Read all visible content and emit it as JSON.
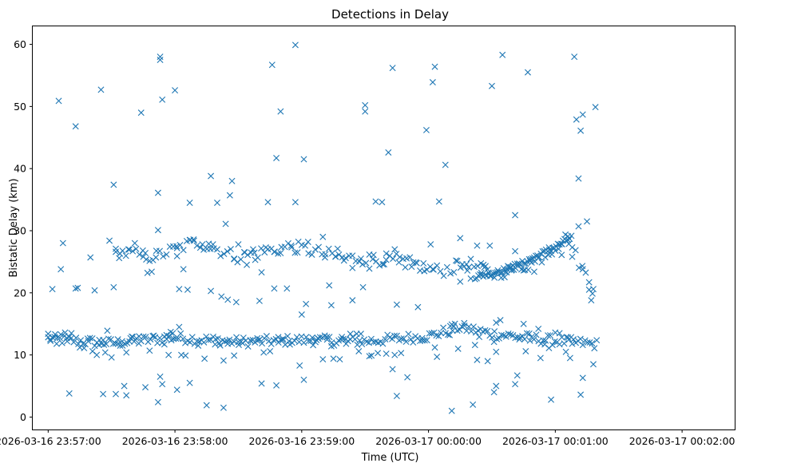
{
  "chart_data": {
    "type": "scatter",
    "title": "Detections in Delay",
    "xlabel": "Time (UTC)",
    "ylabel": "Bistatic Delay (km)",
    "x_ticks": [
      "2026-03-16 23:57:00",
      "2026-03-16 23:58:00",
      "2026-03-16 23:59:00",
      "2026-03-17 00:00:00",
      "2026-03-17 00:01:00",
      "2026-03-17 00:02:00"
    ],
    "x_tick_values": [
      60,
      120,
      180,
      240,
      300,
      360
    ],
    "y_ticks": [
      "0",
      "10",
      "20",
      "30",
      "40",
      "50",
      "60"
    ],
    "y_tick_values": [
      0,
      10,
      20,
      30,
      40,
      50,
      60
    ],
    "xlim": [
      52.7,
      384.9
    ],
    "ylim": [
      -2.0,
      62.9
    ],
    "x_unit": "seconds after 2026-03-16 23:56:00 UTC",
    "marker": "x",
    "color": "#1f77b4",
    "grid": false,
    "series_sparse": [
      [
        60,
        13.4
      ],
      [
        61,
        12.5
      ],
      [
        62,
        20.6
      ],
      [
        63,
        12.9
      ],
      [
        64,
        11.8
      ],
      [
        65,
        50.9
      ],
      [
        66,
        13.3
      ],
      [
        66,
        23.8
      ],
      [
        67,
        28.0
      ],
      [
        68,
        13.6
      ],
      [
        69,
        12.2
      ],
      [
        70,
        3.8
      ],
      [
        71,
        13.5
      ],
      [
        73,
        20.7
      ],
      [
        73,
        46.8
      ],
      [
        74,
        20.8
      ],
      [
        75,
        11.2
      ],
      [
        77,
        11.1
      ],
      [
        79,
        12.2
      ],
      [
        80,
        25.7
      ],
      [
        81,
        10.6
      ],
      [
        82,
        20.4
      ],
      [
        83,
        10.0
      ],
      [
        84,
        11.6
      ],
      [
        85,
        52.7
      ],
      [
        86,
        3.7
      ],
      [
        86,
        12.4
      ],
      [
        87,
        10.4
      ],
      [
        88,
        13.9
      ],
      [
        89,
        28.4
      ],
      [
        90,
        9.6
      ],
      [
        91,
        37.4
      ],
      [
        91,
        20.9
      ],
      [
        92,
        3.7
      ],
      [
        92,
        26.6
      ],
      [
        93,
        11.8
      ],
      [
        94,
        26.3
      ],
      [
        95,
        12.2
      ],
      [
        96,
        5.0
      ],
      [
        97,
        3.5
      ],
      [
        97,
        10.4
      ],
      [
        98,
        27.0
      ],
      [
        99,
        12.7
      ],
      [
        100,
        12.9
      ],
      [
        101,
        28.0
      ],
      [
        103,
        13.0
      ],
      [
        104,
        49.0
      ],
      [
        105,
        25.8
      ],
      [
        106,
        26.4
      ],
      [
        106,
        4.8
      ],
      [
        107,
        23.2
      ],
      [
        108,
        10.7
      ],
      [
        109,
        23.4
      ],
      [
        110,
        13.1
      ],
      [
        111,
        25.7
      ],
      [
        112,
        36.1
      ],
      [
        112,
        2.4
      ],
      [
        112,
        30.1
      ],
      [
        113,
        6.5
      ],
      [
        113,
        58.0
      ],
      [
        113,
        57.5
      ],
      [
        114,
        51.1
      ],
      [
        114,
        5.3
      ],
      [
        115,
        11.7
      ],
      [
        116,
        13.2
      ],
      [
        117,
        10.0
      ],
      [
        118,
        13.7
      ],
      [
        119,
        13.5
      ],
      [
        120,
        52.6
      ],
      [
        121,
        27.2
      ],
      [
        121,
        4.4
      ],
      [
        121,
        25.9
      ],
      [
        122,
        14.5
      ],
      [
        122,
        20.6
      ],
      [
        123,
        10.0
      ],
      [
        124,
        23.8
      ],
      [
        125,
        9.9
      ],
      [
        126,
        20.5
      ],
      [
        127,
        28.5
      ],
      [
        127,
        34.5
      ],
      [
        127,
        5.5
      ],
      [
        129,
        28.4
      ],
      [
        131,
        11.5
      ],
      [
        133,
        27.8
      ],
      [
        134,
        9.4
      ],
      [
        135,
        1.9
      ],
      [
        136,
        27.9
      ],
      [
        137,
        38.8
      ],
      [
        137,
        20.3
      ],
      [
        138,
        27.8
      ],
      [
        139,
        11.7
      ],
      [
        140,
        34.5
      ],
      [
        141,
        11.9
      ],
      [
        142,
        19.4
      ],
      [
        143,
        1.5
      ],
      [
        143,
        9.1
      ],
      [
        144,
        31.1
      ],
      [
        145,
        18.9
      ],
      [
        145,
        11.8
      ],
      [
        146,
        35.7
      ],
      [
        147,
        38.0
      ],
      [
        148,
        25.5
      ],
      [
        148,
        9.9
      ],
      [
        149,
        18.5
      ],
      [
        150,
        27.8
      ],
      [
        150,
        12.1
      ],
      [
        152,
        11.9
      ],
      [
        153,
        26.5
      ],
      [
        154,
        24.5
      ],
      [
        156,
        12.2
      ],
      [
        157,
        27.0
      ],
      [
        158,
        25.3
      ],
      [
        159,
        12.3
      ],
      [
        160,
        18.7
      ],
      [
        161,
        23.3
      ],
      [
        161,
        5.4
      ],
      [
        162,
        10.4
      ],
      [
        163,
        27.3
      ],
      [
        164,
        34.6
      ],
      [
        165,
        10.6
      ],
      [
        166,
        56.7
      ],
      [
        167,
        26.6
      ],
      [
        167,
        20.7
      ],
      [
        168,
        41.7
      ],
      [
        168,
        5.1
      ],
      [
        169,
        12.0
      ],
      [
        170,
        49.2
      ],
      [
        170,
        26.4
      ],
      [
        171,
        12.4
      ],
      [
        173,
        20.7
      ],
      [
        174,
        12.2
      ],
      [
        175,
        27.6
      ],
      [
        177,
        59.9
      ],
      [
        177,
        34.6
      ],
      [
        178,
        26.5
      ],
      [
        179,
        8.3
      ],
      [
        180,
        16.5
      ],
      [
        181,
        41.5
      ],
      [
        181,
        6.0
      ],
      [
        182,
        18.2
      ],
      [
        183,
        28.2
      ],
      [
        185,
        12.8
      ],
      [
        187,
        12.4
      ],
      [
        188,
        12.6
      ],
      [
        190,
        29.0
      ],
      [
        190,
        9.3
      ],
      [
        191,
        25.7
      ],
      [
        192,
        12.9
      ],
      [
        193,
        21.2
      ],
      [
        194,
        11.4
      ],
      [
        194,
        18.0
      ],
      [
        195,
        9.4
      ],
      [
        196,
        25.8
      ],
      [
        197,
        27.1
      ],
      [
        198,
        9.3
      ],
      [
        199,
        12.9
      ],
      [
        200,
        25.2
      ],
      [
        201,
        11.8
      ],
      [
        203,
        13.4
      ],
      [
        204,
        24.0
      ],
      [
        204,
        18.8
      ],
      [
        206,
        13.4
      ],
      [
        207,
        10.6
      ],
      [
        208,
        25.5
      ],
      [
        208,
        13.4
      ],
      [
        209,
        20.9
      ],
      [
        210,
        50.2
      ],
      [
        210,
        49.2
      ],
      [
        212,
        23.9
      ],
      [
        212,
        9.8
      ],
      [
        213,
        9.9
      ],
      [
        214,
        26.1
      ],
      [
        215,
        34.7
      ],
      [
        216,
        10.3
      ],
      [
        218,
        34.6
      ],
      [
        219,
        24.6
      ],
      [
        220,
        25.3
      ],
      [
        220,
        10.2
      ],
      [
        221,
        42.6
      ],
      [
        223,
        7.7
      ],
      [
        223,
        56.2
      ],
      [
        224,
        10.0
      ],
      [
        224,
        27.0
      ],
      [
        225,
        18.1
      ],
      [
        225,
        3.4
      ],
      [
        226,
        24.9
      ],
      [
        227,
        10.3
      ],
      [
        229,
        24.1
      ],
      [
        230,
        6.4
      ],
      [
        232,
        24.2
      ],
      [
        234,
        24.9
      ],
      [
        235,
        17.7
      ],
      [
        237,
        12.7
      ],
      [
        238,
        23.5
      ],
      [
        239,
        46.2
      ],
      [
        241,
        27.8
      ],
      [
        242,
        53.9
      ],
      [
        242,
        23.8
      ],
      [
        243,
        56.4
      ],
      [
        243,
        11.2
      ],
      [
        244,
        9.7
      ],
      [
        245,
        34.7
      ],
      [
        248,
        40.6
      ],
      [
        250,
        13.2
      ],
      [
        251,
        1.0
      ],
      [
        251,
        14.9
      ],
      [
        252,
        14.6
      ],
      [
        253,
        25.2
      ],
      [
        254,
        11.0
      ],
      [
        255,
        28.8
      ],
      [
        255,
        21.8
      ],
      [
        256,
        24.6
      ],
      [
        257,
        14.7
      ],
      [
        258,
        24.6
      ],
      [
        259,
        24.1
      ],
      [
        260,
        22.3
      ],
      [
        261,
        2.0
      ],
      [
        262,
        11.6
      ],
      [
        263,
        9.2
      ],
      [
        263,
        27.6
      ],
      [
        264,
        12.9
      ],
      [
        265,
        23.2
      ],
      [
        266,
        24.5
      ],
      [
        267,
        24.3
      ],
      [
        268,
        9.0
      ],
      [
        269,
        27.6
      ],
      [
        270,
        53.3
      ],
      [
        271,
        4.0
      ],
      [
        271,
        12.1
      ],
      [
        272,
        15.2
      ],
      [
        272,
        10.5
      ],
      [
        272,
        5.0
      ],
      [
        274,
        15.6
      ],
      [
        275,
        58.3
      ],
      [
        277,
        23.3
      ],
      [
        280,
        24.4
      ],
      [
        281,
        26.7
      ],
      [
        281,
        5.3
      ],
      [
        281,
        32.5
      ],
      [
        282,
        6.7
      ],
      [
        283,
        12.5
      ],
      [
        285,
        23.6
      ],
      [
        285,
        15.0
      ],
      [
        286,
        10.6
      ],
      [
        287,
        55.5
      ],
      [
        288,
        12.3
      ],
      [
        288,
        25.1
      ],
      [
        290,
        23.4
      ],
      [
        292,
        14.2
      ],
      [
        293,
        9.5
      ],
      [
        295,
        11.7
      ],
      [
        297,
        27.3
      ],
      [
        297,
        11.1
      ],
      [
        298,
        2.8
      ],
      [
        300,
        13.6
      ],
      [
        302,
        13.5
      ],
      [
        303,
        26.1
      ],
      [
        305,
        10.5
      ],
      [
        306,
        12.8
      ],
      [
        306,
        29.1
      ],
      [
        307,
        9.5
      ],
      [
        308,
        25.8
      ],
      [
        308,
        11.8
      ],
      [
        309,
        58.0
      ],
      [
        310,
        47.9
      ],
      [
        311,
        38.4
      ],
      [
        311,
        30.7
      ],
      [
        312,
        3.6
      ],
      [
        312,
        46.1
      ],
      [
        313,
        6.3
      ],
      [
        313,
        48.7
      ],
      [
        313,
        23.8
      ],
      [
        315,
        31.5
      ],
      [
        316,
        20.5
      ],
      [
        317,
        18.8
      ],
      [
        318,
        20.6
      ],
      [
        318,
        8.5
      ],
      [
        319,
        49.9
      ]
    ]
  }
}
